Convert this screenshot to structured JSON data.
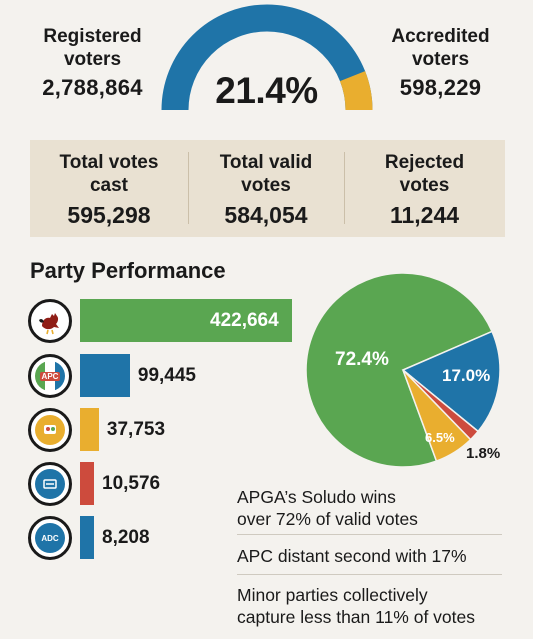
{
  "header": {
    "registered": {
      "label": "Registered\nvoters",
      "value": "2,788,864"
    },
    "accredited": {
      "label": "Accredited\nvoters",
      "value": "598,229"
    },
    "turnout": {
      "label": "21.4%",
      "fraction": 0.214
    }
  },
  "totals": {
    "cast": {
      "label": "Total votes\ncast",
      "value": "595,298"
    },
    "valid": {
      "label": "Total valid\nvotes",
      "value": "584,054"
    },
    "rejected": {
      "label": "Rejected\nvotes",
      "value": "11,244"
    }
  },
  "section_title": "Party Performance",
  "logos": [
    {
      "icon": "rooster-icon",
      "text": ""
    },
    {
      "icon": "apc-logo-icon",
      "text": "APC"
    },
    {
      "icon": "party-logo-icon",
      "text": ""
    },
    {
      "icon": "party-logo-icon",
      "text": ""
    },
    {
      "icon": "adc-logo-icon",
      "text": "ADC"
    }
  ],
  "colors": {
    "green": "#5aa651",
    "blue": "#1f74a8",
    "yellow": "#e9ae2f",
    "red": "#cd4b3d",
    "dark": "#1a1a1a"
  },
  "notes": [
    "APGA’s Soludo wins\nover 72% of valid votes",
    "APC distant second with 17%",
    "Minor parties collectively\ncapture less than 11% of votes"
  ],
  "chart_data": [
    {
      "type": "bar",
      "categories": [
        "",
        "",
        "",
        "",
        ""
      ],
      "values": [
        422664,
        99445,
        37753,
        10576,
        8208
      ],
      "value_labels": [
        "422,664",
        "99,445",
        "37,753",
        "10,576",
        "8,208"
      ],
      "colors": [
        "#5aa651",
        "#1f74a8",
        "#e9ae2f",
        "#cd4b3d",
        "#1f74a8"
      ]
    },
    {
      "type": "pie",
      "values": [
        72.4,
        17.0,
        1.8,
        6.5
      ],
      "labels": [
        "72.4%",
        "17.0%",
        "1.8%",
        "6.5%"
      ],
      "colors": [
        "#5aa651",
        "#1f74a8",
        "#cd4b3d",
        "#e9ae2f"
      ]
    }
  ]
}
